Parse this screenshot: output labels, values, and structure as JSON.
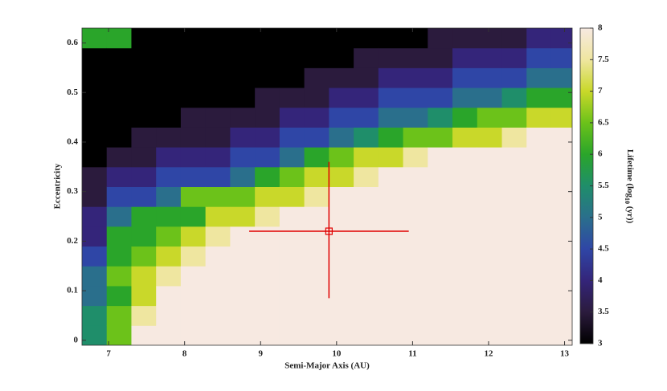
{
  "chart_data": {
    "type": "heatmap",
    "x_label": "Semi-Major Axis (AU)",
    "y_label": "Eccentricity",
    "colorbar_label": [
      "Lifetime (log",
      "10",
      " (yr))"
    ],
    "x": [
      6.8125,
      7.1375,
      7.4625,
      7.7875,
      8.1125,
      8.4375,
      8.7625,
      9.0875,
      9.4125,
      9.7375,
      10.0625,
      10.3875,
      10.7125,
      11.0375,
      11.3625,
      11.6875,
      12.0125,
      12.3375,
      12.6625,
      12.9875
    ],
    "y": [
      0.01,
      0.05,
      0.09,
      0.13,
      0.17,
      0.21,
      0.25,
      0.29,
      0.33,
      0.37,
      0.41,
      0.45,
      0.49,
      0.53,
      0.57,
      0.61
    ],
    "values": [
      [
        5.5,
        5.5,
        5,
        5,
        4.5,
        4,
        4,
        3.5,
        3.5,
        3,
        3,
        3,
        3,
        3,
        3,
        6
      ],
      [
        6.5,
        6.5,
        6,
        6.5,
        6,
        6,
        5,
        4.5,
        4,
        3.5,
        3,
        3,
        3,
        3,
        3,
        6
      ],
      [
        8,
        7.5,
        7,
        7,
        6.5,
        6,
        6,
        4.5,
        4,
        3.5,
        3.5,
        3,
        3,
        3,
        3,
        3
      ],
      [
        8,
        8,
        8,
        7.5,
        7,
        6.5,
        6,
        5,
        4.5,
        4,
        3.5,
        3,
        3,
        3,
        3,
        3
      ],
      [
        8,
        8,
        8,
        8,
        7.5,
        7,
        6,
        6.5,
        4.5,
        4,
        3.5,
        3.5,
        3,
        3,
        3,
        3
      ],
      [
        8,
        8,
        8,
        8,
        8,
        7.5,
        7,
        6.5,
        4.5,
        4,
        3.5,
        3.5,
        3,
        3,
        3,
        3
      ],
      [
        8,
        8,
        8,
        8,
        8,
        8,
        7,
        6.5,
        5,
        4.5,
        4,
        3.5,
        3,
        3,
        3,
        3
      ],
      [
        8,
        8,
        8,
        8,
        8,
        8,
        7.5,
        7,
        6,
        4.5,
        4,
        3.5,
        3.5,
        3,
        3,
        3
      ],
      [
        8,
        8,
        8,
        8,
        8,
        8,
        8,
        7,
        6.5,
        5,
        4.5,
        4,
        3.5,
        3,
        3,
        3
      ],
      [
        8,
        8,
        8,
        8,
        8,
        8,
        8,
        7.5,
        7,
        6,
        4.5,
        4,
        3.5,
        3.5,
        3,
        3
      ],
      [
        8,
        8,
        8,
        8,
        8,
        8,
        8,
        8,
        7,
        6.5,
        5,
        4.5,
        4,
        3.5,
        3,
        3
      ],
      [
        8,
        8,
        8,
        8,
        8,
        8,
        8,
        8,
        7.5,
        7,
        5.5,
        4.5,
        4,
        3.5,
        3.5,
        3
      ],
      [
        8,
        8,
        8,
        8,
        8,
        8,
        8,
        8,
        8,
        7,
        6,
        5,
        4.5,
        4,
        3.5,
        3
      ],
      [
        8,
        8,
        8,
        8,
        8,
        8,
        8,
        8,
        8,
        7.5,
        6.5,
        5,
        4.5,
        4,
        3.5,
        3
      ],
      [
        8,
        8,
        8,
        8,
        8,
        8,
        8,
        8,
        8,
        8,
        6.5,
        5.5,
        4.5,
        4,
        3.5,
        3.5
      ],
      [
        8,
        8,
        8,
        8,
        8,
        8,
        8,
        8,
        8,
        8,
        7,
        6,
        5,
        4.5,
        4,
        3.5
      ],
      [
        8,
        8,
        8,
        8,
        8,
        8,
        8,
        8,
        8,
        8,
        7,
        6.5,
        5,
        4.5,
        4,
        3.5
      ],
      [
        8,
        8,
        8,
        8,
        8,
        8,
        8,
        8,
        8,
        8,
        7.5,
        6.5,
        5.5,
        4.5,
        4,
        3.5
      ],
      [
        8,
        8,
        8,
        8,
        8,
        8,
        8,
        8,
        8,
        8,
        8,
        7,
        6,
        5,
        4.5,
        4
      ],
      [
        8,
        8,
        8,
        8,
        8,
        8,
        8,
        8,
        8,
        8,
        8,
        7,
        6,
        5,
        4.5,
        4
      ]
    ],
    "xlim": [
      6.65,
      13.1
    ],
    "xticks": [
      7,
      8,
      9,
      10,
      11,
      12,
      13
    ],
    "ylim": [
      -0.01,
      0.63
    ],
    "yticks": [
      0,
      0.1,
      0.2,
      0.3,
      0.4,
      0.5,
      0.6
    ],
    "zlim": [
      3,
      8
    ],
    "zticks": [
      3,
      3.5,
      4,
      4.5,
      5,
      5.5,
      6,
      6.5,
      7,
      7.5,
      8
    ],
    "colormap": [
      "#000000",
      "#2b1b3d",
      "#34257a",
      "#2f46a6",
      "#2a6f8c",
      "#1f8e6a",
      "#2aa52a",
      "#6cc21a",
      "#c9d82a",
      "#efe6a0",
      "#f7e9e1"
    ],
    "marker": {
      "x": 9.9,
      "y": 0.22,
      "x_range": [
        8.85,
        10.95
      ],
      "y_range": [
        0.085,
        0.36
      ],
      "color": "#e00000"
    }
  }
}
